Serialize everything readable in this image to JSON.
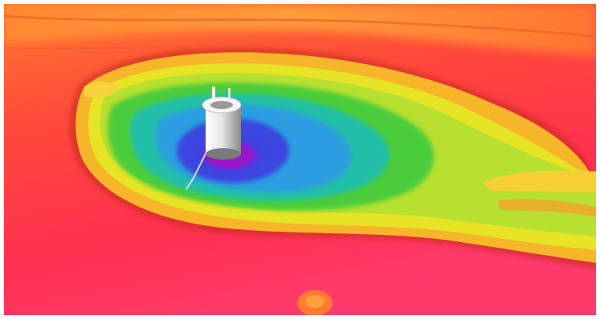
{
  "image": {
    "kind": "color-coded 3D bathymetry render",
    "subject_icons": [
      "depression-icon",
      "structure-icon",
      "cable-icon"
    ],
    "colors": {
      "high": "#ff2a5a",
      "upper_mid": "#ff8a2a",
      "mid": "#f5e01a",
      "lower_mid": "#42d23a",
      "low": "#1fb4d8",
      "deep": "#3a2ad8",
      "deepest": "#b020c8",
      "structure": "#e8e8e8"
    }
  }
}
